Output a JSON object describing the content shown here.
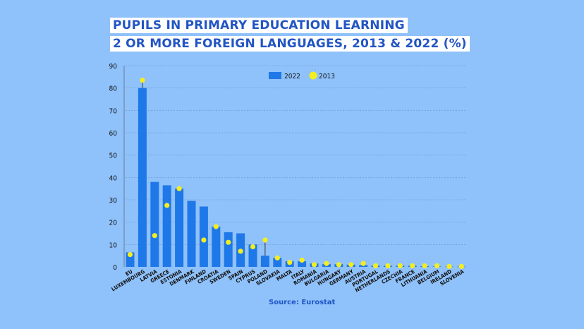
{
  "title": {
    "line1": "PUPILS IN PRIMARY EDUCATION LEARNING",
    "line2": "2 OR MORE FOREIGN LANGUAGES, 2013 & 2022 (%)"
  },
  "source": "Source: Eurostat",
  "colors": {
    "bar": "#1f78e8",
    "dot": "#f5ee1d",
    "background": "#8fc1fa",
    "title_text": "#2255c4"
  },
  "chart_data": {
    "type": "bar",
    "categories": [
      "EU",
      "LUXEMBOURG",
      "LATVIA",
      "GREECE",
      "ESTONIA",
      "DENMARK",
      "FINLAND",
      "CROATIA",
      "SWEDEN",
      "SPAIN",
      "CYPRUS",
      "POLAND",
      "SLOVAKIA",
      "MALTA",
      "ITALY",
      "ROMANIA",
      "BULGARIA",
      "HUNGARY",
      "GERMANY",
      "AUSTRIA",
      "PORTUGAL",
      "NETHERLANDS",
      "CZECHIA",
      "FRANCE",
      "LITHUANIA",
      "BELGIUM",
      "IRELAND",
      "SLOVENIA"
    ],
    "series": [
      {
        "name": "2022",
        "type": "bar",
        "values": [
          6.5,
          80,
          38,
          36.5,
          35,
          29.5,
          27,
          18,
          15.5,
          15,
          10,
          5,
          4,
          2.5,
          2.5,
          1.5,
          1.2,
          1.2,
          1,
          0.8,
          0.5,
          0.5,
          0.5,
          0.5,
          0.3,
          0.2,
          0.1,
          0.1
        ]
      },
      {
        "name": "2013",
        "type": "scatter",
        "values": [
          5.5,
          83.5,
          14,
          27.5,
          35,
          null,
          12,
          18,
          11,
          7,
          9,
          12,
          4,
          2,
          3,
          1,
          1.5,
          1,
          1,
          1.5,
          0.5,
          0.5,
          0.5,
          0.5,
          0.5,
          0.5,
          0.2,
          0.2
        ]
      }
    ],
    "yticks": [
      0,
      10,
      20,
      30,
      40,
      50,
      60,
      70,
      80,
      90
    ],
    "ylim": [
      0,
      90
    ],
    "grid": true,
    "legend": "top-center"
  }
}
